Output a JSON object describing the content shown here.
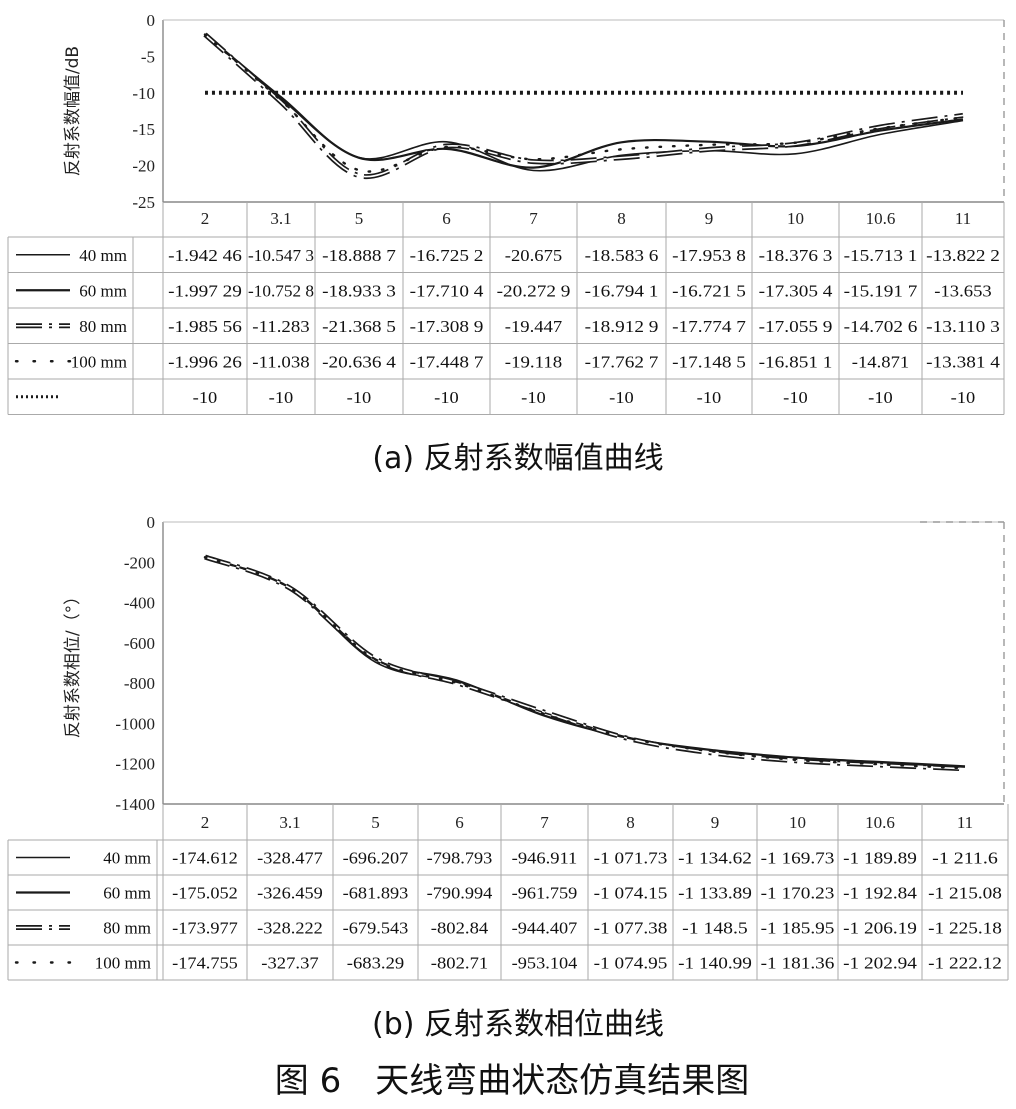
{
  "chart_data": [
    {
      "type": "line",
      "ylabel": "反射系数幅值/dB",
      "ylim": [
        -25,
        0
      ],
      "yticks": [
        "0",
        "-5",
        "-10",
        "-15",
        "-20",
        "-25"
      ],
      "categories": [
        "2",
        "3.1",
        "5",
        "6",
        "7",
        "8",
        "9",
        "10",
        "10.6",
        "11"
      ],
      "grid": false,
      "legend": "data-table-left",
      "series": [
        {
          "name": "40 mm",
          "style": "solid-thin",
          "values": [
            -1.94246,
            -10.5473,
            -18.8887,
            -16.7252,
            -20.675,
            -18.5836,
            -17.9538,
            -18.3763,
            -15.7131,
            -13.8222
          ],
          "labels": [
            "-1.942 46",
            "-10.547 3",
            "-18.888 7",
            "-16.725 2",
            "-20.675",
            "-18.583 6",
            "-17.953 8",
            "-18.376 3",
            "-15.713 1",
            "-13.822 2"
          ]
        },
        {
          "name": "60 mm",
          "style": "solid",
          "values": [
            -1.99729,
            -10.7528,
            -18.9333,
            -17.7104,
            -20.2729,
            -16.7941,
            -16.7215,
            -17.3054,
            -15.1917,
            -13.653
          ],
          "labels": [
            "-1.997 29",
            "-10.752 8",
            "-18.933 3",
            "-17.710 4",
            "-20.272 9",
            "-16.794 1",
            "-16.721 5",
            "-17.305 4",
            "-15.191 7",
            "-13.653"
          ]
        },
        {
          "name": "80 mm",
          "style": "double-dot",
          "values": [
            -1.98556,
            -11.283,
            -21.3685,
            -17.3089,
            -19.447,
            -18.9129,
            -17.7747,
            -17.0559,
            -14.7026,
            -13.1103
          ],
          "labels": [
            "-1.985 56",
            "-11.283",
            "-21.368 5",
            "-17.308 9",
            "-19.447",
            "-18.912 9",
            "-17.774 7",
            "-17.055 9",
            "-14.702 6",
            "-13.110 3"
          ]
        },
        {
          "name": "100 mm",
          "style": "dots",
          "values": [
            -1.99626,
            -11.038,
            -20.6364,
            -17.4487,
            -19.118,
            -17.7627,
            -17.1485,
            -16.8511,
            -14.871,
            -13.3814
          ],
          "labels": [
            "-1.996 26",
            "-11.038",
            "-20.636 4",
            "-17.448 7",
            "-19.118",
            "-17.762 7",
            "-17.148 5",
            "-16.851 1",
            "-14.871",
            "-13.381 4"
          ]
        },
        {
          "name": "",
          "style": "dotted-thick",
          "values": [
            -10,
            -10,
            -10,
            -10,
            -10,
            -10,
            -10,
            -10,
            -10,
            -10
          ],
          "labels": [
            "-10",
            "-10",
            "-10",
            "-10",
            "-10",
            "-10",
            "-10",
            "-10",
            "-10",
            "-10"
          ]
        }
      ]
    },
    {
      "type": "line",
      "ylabel": "反射系数相位/（°）",
      "ylim": [
        -1400,
        0
      ],
      "yticks": [
        "0",
        "-200",
        "-400",
        "-600",
        "-800",
        "-1000",
        "-1200",
        "-1400"
      ],
      "categories": [
        "2",
        "3.1",
        "5",
        "6",
        "7",
        "8",
        "9",
        "10",
        "10.6",
        "11"
      ],
      "grid": false,
      "legend": "data-table-left",
      "series": [
        {
          "name": "40 mm",
          "style": "solid-thin",
          "values": [
            -174.612,
            -328.477,
            -696.207,
            -798.793,
            -946.911,
            -1071.73,
            -1134.62,
            -1169.73,
            -1189.89,
            -1211.6
          ],
          "labels": [
            "-174.612",
            "-328.477",
            "-696.207",
            "-798.793",
            "-946.911",
            "-1 071.73",
            "-1 134.62",
            "-1 169.73",
            "-1 189.89",
            "-1 211.6"
          ]
        },
        {
          "name": "60 mm",
          "style": "solid",
          "values": [
            -175.052,
            -326.459,
            -681.893,
            -790.994,
            -961.759,
            -1074.15,
            -1133.89,
            -1170.23,
            -1192.84,
            -1215.08
          ],
          "labels": [
            "-175.052",
            "-326.459",
            "-681.893",
            "-790.994",
            "-961.759",
            "-1 074.15",
            "-1 133.89",
            "-1 170.23",
            "-1 192.84",
            "-1 215.08"
          ]
        },
        {
          "name": "80 mm",
          "style": "double-dot",
          "values": [
            -173.977,
            -328.222,
            -679.543,
            -802.84,
            -944.407,
            -1077.38,
            -1148.5,
            -1185.95,
            -1206.19,
            -1225.18
          ],
          "labels": [
            "-173.977",
            "-328.222",
            "-679.543",
            "-802.84",
            "-944.407",
            "-1 077.38",
            "-1 148.5",
            "-1 185.95",
            "-1 206.19",
            "-1 225.18"
          ]
        },
        {
          "name": "100 mm",
          "style": "dots",
          "values": [
            -174.755,
            -327.37,
            -683.29,
            -802.71,
            -953.104,
            -1074.95,
            -1140.99,
            -1181.36,
            -1202.94,
            -1222.12
          ],
          "labels": [
            "-174.755",
            "-327.37",
            "-683.29",
            "-802.71",
            "-953.104",
            "-1 074.95",
            "-1 140.99",
            "-1 181.36",
            "-1 202.94",
            "-1 222.12"
          ]
        }
      ]
    }
  ],
  "captions": {
    "a": "(a) 反射系数幅值曲线",
    "b": "(b) 反射系数相位曲线",
    "figure": "图 6　天线弯曲状态仿真结果图"
  }
}
